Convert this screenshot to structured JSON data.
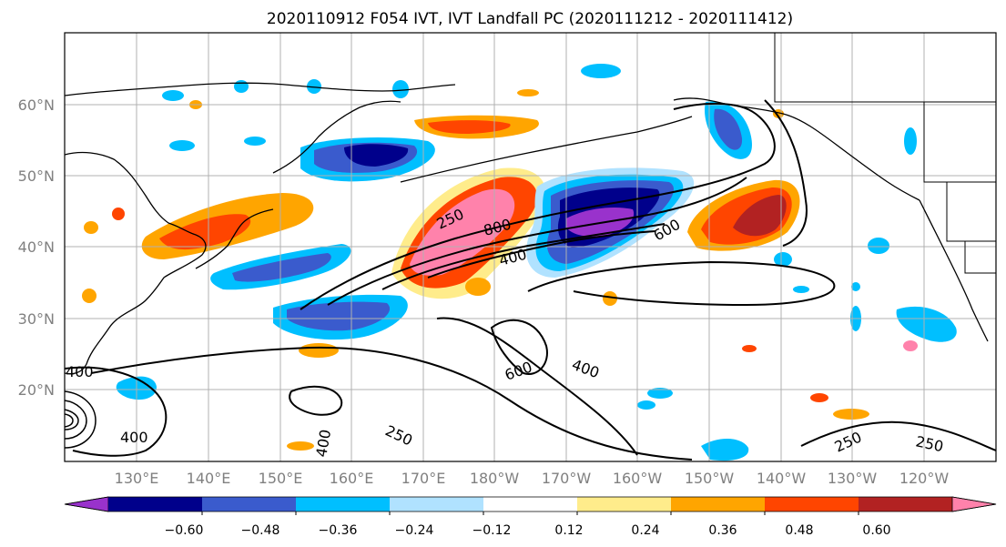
{
  "title": "2020110912 F054 IVT, IVT Landfall PC (2020111212 - 2020111412)",
  "map": {
    "lat_labels": [
      "20°N",
      "30°N",
      "40°N",
      "50°N",
      "60°N"
    ],
    "lon_labels": [
      "130°E",
      "140°E",
      "150°E",
      "160°E",
      "170°E",
      "180°W",
      "170°W",
      "160°W",
      "150°W",
      "140°W",
      "130°W",
      "120°W"
    ],
    "ivt_contour_labels": [
      "250",
      "800",
      "600",
      "400",
      "600",
      "400",
      "250",
      "250",
      "250",
      "400",
      "400",
      "400"
    ]
  },
  "colorbar": {
    "colors": [
      "#9932cc",
      "#00008b",
      "#3a5bcd",
      "#00bfff",
      "#b0e2ff",
      "#ffffff",
      "#ffec8b",
      "#ffa500",
      "#ff4500",
      "#b22222",
      "#ff82ab"
    ],
    "tick_labels": [
      "−0.60",
      "−0.48",
      "−0.36",
      "−0.24",
      "−0.12",
      "0.12",
      "0.24",
      "0.36",
      "0.48",
      "0.60"
    ]
  }
}
